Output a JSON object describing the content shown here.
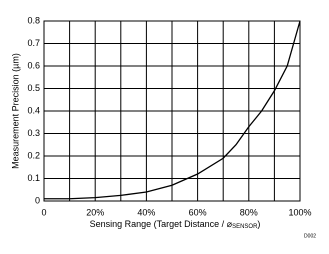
{
  "chart_data": {
    "type": "line",
    "xlabel": "Sensing Range (Target Distance / ⌀",
    "xlabel_sub": "SENSOR",
    "xlabel_end": ")",
    "ylabel": "Measurement Precision (µm)",
    "note": "D002",
    "x": [
      0,
      10,
      20,
      25,
      30,
      40,
      50,
      60,
      70,
      75,
      80,
      85,
      90,
      95,
      100
    ],
    "series": [
      {
        "color": "#000000",
        "values": [
          0.01,
          0.01,
          0.015,
          0.02,
          0.025,
          0.04,
          0.07,
          0.12,
          0.19,
          0.25,
          0.33,
          0.4,
          0.49,
          0.6,
          0.8
        ]
      }
    ],
    "xlim": [
      0,
      100
    ],
    "xticks": [
      0,
      {
        "value": 20,
        "label": "20%"
      },
      {
        "value": 40,
        "label": "40%"
      },
      {
        "value": 60,
        "label": "60%"
      },
      {
        "value": 80,
        "label": "80%"
      },
      {
        "value": 100,
        "label": "100%"
      }
    ],
    "xminor": [
      10,
      30,
      50,
      70,
      90
    ],
    "ylim": [
      0,
      0.8
    ],
    "yticks": [
      0,
      0.1,
      0.2,
      0.3,
      0.4,
      0.5,
      0.6,
      0.7,
      0.8
    ],
    "grid": true
  }
}
